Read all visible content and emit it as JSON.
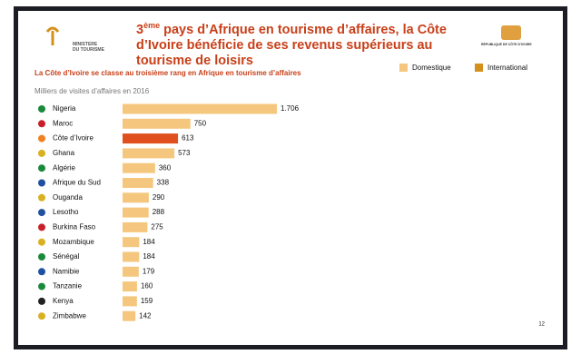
{
  "header": {
    "logo_line1": "MINISTERE",
    "logo_line2": "DU TOURISME",
    "title_number": "3",
    "title_superscript": "ème",
    "title_text": "pays d’Afrique en tourisme d’affaires, la Côte d’Ivoire bénéficie de ses revenus supérieurs au tourisme de loisirs",
    "emblem_text": "RÉPUBLIQUE DE CÔTE D'IVOIRE"
  },
  "chart_data": {
    "type": "bar",
    "orientation": "horizontal",
    "subtitle": "La Côte d’Ivoire se classe au troisième rang en Afrique en tourisme d’affaires",
    "note": "Milliers de visites d’affaires en 2016",
    "categories": [
      "Nigeria",
      "Maroc",
      "Côte d’Ivoire",
      "Ghana",
      "Algérie",
      "Afrique du Sud",
      "Ouganda",
      "Lesotho",
      "Burkina Faso",
      "Mozambique",
      "Sénégal",
      "Namibie",
      "Tanzanie",
      "Kenya",
      "Zimbabwe"
    ],
    "values": [
      1706,
      750,
      613,
      573,
      360,
      338,
      290,
      288,
      275,
      184,
      184,
      179,
      160,
      159,
      142
    ],
    "value_labels": [
      "1.706",
      "750",
      "613",
      "573",
      "360",
      "338",
      "290",
      "288",
      "275",
      "184",
      "184",
      "179",
      "160",
      "159",
      "142"
    ],
    "color": "#f5c77e",
    "highlight_index": 2,
    "highlight_color": "#e0501e",
    "legend": [
      {
        "name": "Domestique",
        "color": "#f5c77e"
      },
      {
        "name": "International",
        "color": "#d4901c"
      }
    ],
    "page_number": "12"
  }
}
